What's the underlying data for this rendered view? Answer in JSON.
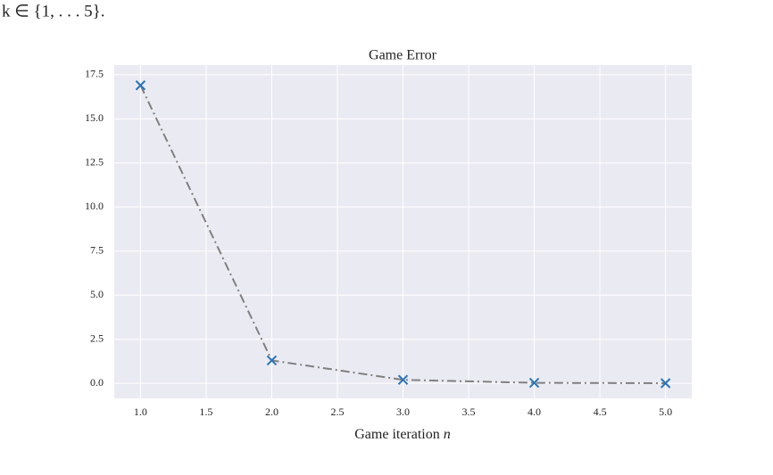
{
  "text": "k ∈ {1, . . . 5}.",
  "chart_data": {
    "type": "line",
    "title": "Game Error",
    "xlabel": "Game iteration",
    "xlabel_var": "n",
    "x": [
      1,
      2,
      3,
      4,
      5
    ],
    "series": [
      {
        "values": [
          16.9,
          1.3,
          0.2,
          0.03,
          0.01
        ],
        "line_color": "#808080",
        "marker_color": "#2a75b3"
      }
    ],
    "xlim": [
      0.8,
      5.2
    ],
    "ylim": [
      -0.85,
      18.05
    ],
    "xticks": [
      {
        "value": 1,
        "label": "1.0"
      },
      {
        "value": 1.5,
        "label": "1.5"
      },
      {
        "value": 2,
        "label": "2.0"
      },
      {
        "value": 2.5,
        "label": "2.5"
      },
      {
        "value": 3,
        "label": "3.0"
      },
      {
        "value": 3.5,
        "label": "3.5"
      },
      {
        "value": 4,
        "label": "4.0"
      },
      {
        "value": 4.5,
        "label": "4.5"
      },
      {
        "value": 5,
        "label": "5.0"
      }
    ],
    "yticks": [
      {
        "value": 0,
        "label": "0.0"
      },
      {
        "value": 2.5,
        "label": "2.5"
      },
      {
        "value": 5,
        "label": "5.0"
      },
      {
        "value": 7.5,
        "label": "7.5"
      },
      {
        "value": 10,
        "label": "10.0"
      },
      {
        "value": 12.5,
        "label": "12.5"
      },
      {
        "value": 15,
        "label": "15.0"
      },
      {
        "value": 17.5,
        "label": "17.5"
      }
    ],
    "grid": true,
    "background": "#eaeaf2"
  }
}
